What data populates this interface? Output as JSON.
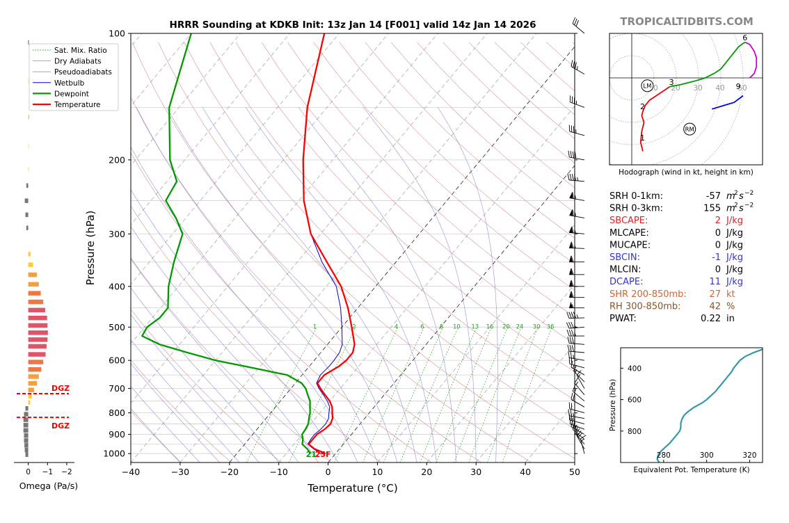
{
  "title": "HRRR Sounding at KDKB Init: 13z Jan 14 [F001] valid 14z Jan 14 2026",
  "brand": "TROPICALTIDBITS.COM",
  "chart_data": [
    {
      "type": "line",
      "name": "skewt",
      "xlabel": "Temperature (°C)",
      "ylabel": "Pressure (hPa)",
      "xlim": [
        -40,
        50
      ],
      "ylim": [
        1050,
        100
      ],
      "xticks": [
        "−40",
        "−30",
        "−20",
        "−10",
        "0",
        "10",
        "20",
        "30",
        "40",
        "50"
      ],
      "xtick_values": [
        -40,
        -30,
        -20,
        -10,
        0,
        10,
        20,
        30,
        40,
        50
      ],
      "yticks": [
        "1000",
        "900",
        "800",
        "700",
        "600",
        "500",
        "400",
        "300",
        "200",
        "100"
      ],
      "ytick_values": [
        1000,
        900,
        800,
        700,
        600,
        500,
        400,
        300,
        200,
        100
      ],
      "legend": [
        "Sat. Mix. Ratio",
        "Dry Adiabats",
        "Pseudoadiabats",
        "Wetbulb",
        "Dewpoint",
        "Temperature"
      ],
      "legend_position": "upper-left",
      "colors": {
        "temperature": "#ff0000",
        "dewpoint": "#009900",
        "wetbulb": "#0000cc",
        "dry": "#c87878",
        "moist": "#7878c8",
        "mix": "#339933"
      },
      "mixing_ratio_labels": [
        "1",
        "2",
        "4",
        "6",
        "8",
        "10",
        "13",
        "16",
        "20",
        "24",
        "30",
        "36"
      ],
      "surface_dewpoint_label": "21",
      "surface_temp_label": "25F",
      "temperature": [
        [
          1000,
          -2
        ],
        [
          975,
          -5
        ],
        [
          950,
          -7
        ],
        [
          925,
          -7
        ],
        [
          900,
          -7
        ],
        [
          875,
          -6.3
        ],
        [
          850,
          -6
        ],
        [
          825,
          -6.5
        ],
        [
          800,
          -7.5
        ],
        [
          775,
          -8.5
        ],
        [
          750,
          -10
        ],
        [
          725,
          -12
        ],
        [
          700,
          -14
        ],
        [
          680,
          -15.5
        ],
        [
          650,
          -15.5
        ],
        [
          620,
          -14
        ],
        [
          600,
          -13.5
        ],
        [
          575,
          -13.5
        ],
        [
          550,
          -14.5
        ],
        [
          500,
          -18
        ],
        [
          450,
          -22
        ],
        [
          400,
          -27
        ],
        [
          350,
          -34
        ],
        [
          300,
          -42
        ],
        [
          250,
          -49
        ],
        [
          200,
          -56
        ],
        [
          150,
          -64
        ],
        [
          100,
          -73
        ]
      ],
      "wetbulb": [
        [
          1000,
          -3
        ],
        [
          975,
          -5.2
        ],
        [
          950,
          -7.2
        ],
        [
          925,
          -7.4
        ],
        [
          900,
          -7.5
        ],
        [
          875,
          -7.1
        ],
        [
          850,
          -7
        ],
        [
          825,
          -7.3
        ],
        [
          800,
          -8.2
        ],
        [
          775,
          -9
        ],
        [
          750,
          -10.5
        ],
        [
          725,
          -12.3
        ],
        [
          700,
          -14.3
        ],
        [
          680,
          -15.7
        ],
        [
          650,
          -16.3
        ],
        [
          620,
          -16
        ],
        [
          600,
          -16
        ],
        [
          575,
          -16.2
        ],
        [
          550,
          -17
        ],
        [
          500,
          -20
        ],
        [
          450,
          -23.5
        ],
        [
          400,
          -28
        ],
        [
          350,
          -35
        ],
        [
          300,
          -42
        ],
        [
          250,
          -49
        ],
        [
          200,
          -56
        ],
        [
          150,
          -64
        ],
        [
          100,
          -73
        ]
      ],
      "dewpoint": [
        [
          1000,
          -5
        ],
        [
          975,
          -6.5
        ],
        [
          950,
          -8.3
        ],
        [
          925,
          -9
        ],
        [
          900,
          -10
        ],
        [
          875,
          -10.2
        ],
        [
          850,
          -10.5
        ],
        [
          825,
          -11.3
        ],
        [
          800,
          -12
        ],
        [
          775,
          -13
        ],
        [
          750,
          -14
        ],
        [
          725,
          -15.5
        ],
        [
          700,
          -17
        ],
        [
          680,
          -18.7
        ],
        [
          650,
          -23
        ],
        [
          620,
          -33
        ],
        [
          600,
          -40
        ],
        [
          575,
          -47
        ],
        [
          550,
          -54
        ],
        [
          525,
          -59
        ],
        [
          500,
          -59.5
        ],
        [
          475,
          -58.5
        ],
        [
          450,
          -58.5
        ],
        [
          400,
          -62
        ],
        [
          350,
          -65
        ],
        [
          300,
          -68
        ],
        [
          275,
          -72
        ],
        [
          250,
          -77
        ],
        [
          225,
          -78
        ],
        [
          200,
          -83
        ],
        [
          150,
          -92
        ],
        [
          100,
          -100
        ]
      ],
      "wind_barbs": [
        {
          "p": 1000,
          "dir": 345,
          "spd": 15
        },
        {
          "p": 975,
          "dir": 330,
          "spd": 20
        },
        {
          "p": 950,
          "dir": 320,
          "spd": 25
        },
        {
          "p": 925,
          "dir": 310,
          "spd": 25
        },
        {
          "p": 900,
          "dir": 300,
          "spd": 25
        },
        {
          "p": 875,
          "dir": 290,
          "spd": 25
        },
        {
          "p": 850,
          "dir": 285,
          "spd": 25
        },
        {
          "p": 825,
          "dir": 280,
          "spd": 25
        },
        {
          "p": 800,
          "dir": 285,
          "spd": 20
        },
        {
          "p": 775,
          "dir": 300,
          "spd": 20
        },
        {
          "p": 750,
          "dir": 310,
          "spd": 15
        },
        {
          "p": 725,
          "dir": 320,
          "spd": 15
        },
        {
          "p": 700,
          "dir": 330,
          "spd": 15
        },
        {
          "p": 675,
          "dir": 315,
          "spd": 15
        },
        {
          "p": 650,
          "dir": 300,
          "spd": 15
        },
        {
          "p": 625,
          "dir": 285,
          "spd": 20
        },
        {
          "p": 600,
          "dir": 280,
          "spd": 25
        },
        {
          "p": 575,
          "dir": 275,
          "spd": 30
        },
        {
          "p": 550,
          "dir": 275,
          "spd": 30
        },
        {
          "p": 525,
          "dir": 270,
          "spd": 35
        },
        {
          "p": 500,
          "dir": 265,
          "spd": 35
        },
        {
          "p": 475,
          "dir": 268,
          "spd": 45
        },
        {
          "p": 450,
          "dir": 270,
          "spd": 55
        },
        {
          "p": 425,
          "dir": 270,
          "spd": 60
        },
        {
          "p": 400,
          "dir": 270,
          "spd": 60
        },
        {
          "p": 375,
          "dir": 270,
          "spd": 60
        },
        {
          "p": 350,
          "dir": 270,
          "spd": 60
        },
        {
          "p": 325,
          "dir": 272,
          "spd": 65
        },
        {
          "p": 300,
          "dir": 275,
          "spd": 65
        },
        {
          "p": 275,
          "dir": 280,
          "spd": 65
        },
        {
          "p": 250,
          "dir": 280,
          "spd": 65
        },
        {
          "p": 225,
          "dir": 275,
          "spd": 45
        },
        {
          "p": 200,
          "dir": 280,
          "spd": 40
        },
        {
          "p": 175,
          "dir": 285,
          "spd": 35
        },
        {
          "p": 150,
          "dir": 290,
          "spd": 35
        },
        {
          "p": 125,
          "dir": 300,
          "spd": 35
        },
        {
          "p": 100,
          "dir": 310,
          "spd": 30
        }
      ]
    },
    {
      "type": "bar",
      "name": "omega",
      "xlabel": "Omega (Pa/s)",
      "xticks": [
        "0",
        "−1",
        "−2"
      ],
      "xtick_values": [
        0,
        -1,
        -2
      ],
      "xlim": [
        0.6,
        -2.4
      ],
      "dgz_label": "DGZ",
      "dgz_levels": [
        720,
        820
      ],
      "bars": [
        [
          105,
          0.01
        ],
        [
          130,
          -0.04
        ],
        [
          158,
          -0.05
        ],
        [
          185,
          -0.02
        ],
        [
          210,
          -0.01
        ],
        [
          230,
          0.1
        ],
        [
          250,
          0.18
        ],
        [
          270,
          0.15
        ],
        [
          290,
          0.1
        ],
        [
          335,
          -0.12
        ],
        [
          355,
          -0.25
        ],
        [
          375,
          -0.45
        ],
        [
          395,
          -0.55
        ],
        [
          415,
          -0.65
        ],
        [
          435,
          -0.78
        ],
        [
          455,
          -0.88
        ],
        [
          475,
          -0.98
        ],
        [
          495,
          -1.0
        ],
        [
          515,
          -1.02
        ],
        [
          535,
          -1.0
        ],
        [
          555,
          -0.95
        ],
        [
          580,
          -0.9
        ],
        [
          605,
          -0.78
        ],
        [
          630,
          -0.68
        ],
        [
          655,
          -0.55
        ],
        [
          680,
          -0.45
        ],
        [
          705,
          -0.3
        ],
        [
          730,
          -0.18
        ],
        [
          755,
          -0.1
        ],
        [
          780,
          0.15
        ],
        [
          805,
          0.22
        ],
        [
          830,
          0.25
        ],
        [
          855,
          0.25
        ],
        [
          880,
          0.25
        ],
        [
          905,
          0.22
        ],
        [
          930,
          0.22
        ],
        [
          955,
          0.2
        ],
        [
          980,
          0.18
        ],
        [
          1005,
          0.15
        ]
      ]
    },
    {
      "type": "line",
      "name": "hodograph",
      "xlabel": "Hodograph (wind in kt, height in km)",
      "ring_labels": [
        "10",
        "20",
        "30",
        "40",
        "50"
      ],
      "ring_values": [
        10,
        20,
        30,
        40,
        50
      ],
      "segments": [
        {
          "color": "#ee0000",
          "points": [
            [
              5,
              -33
            ],
            [
              4,
              -29
            ],
            [
              4.5,
              -24
            ],
            [
              5.5,
              -20
            ],
            [
              4.5,
              -17
            ],
            [
              5,
              -15
            ],
            [
              6,
              -12.5
            ],
            [
              8,
              -10
            ],
            [
              11,
              -8
            ],
            [
              14,
              -6
            ],
            [
              17,
              -4
            ]
          ]
        },
        {
          "color": "#009900",
          "points": [
            [
              17,
              -4
            ],
            [
              22,
              -3
            ],
            [
              28,
              -1.5
            ],
            [
              33,
              0
            ],
            [
              37,
              2
            ],
            [
              40,
              4
            ],
            [
              42,
              6.5
            ],
            [
              44,
              9
            ],
            [
              46,
              11.5
            ],
            [
              48,
              14
            ],
            [
              50,
              15.5
            ],
            [
              51,
              16
            ]
          ]
        },
        {
          "color": "#cc00cc",
          "points": [
            [
              51,
              16
            ],
            [
              53,
              15
            ],
            [
              55,
              12
            ],
            [
              56,
              9
            ],
            [
              56,
              5
            ],
            [
              55,
              2
            ],
            [
              53,
              0
            ]
          ]
        },
        {
          "color": "#0000ee",
          "points": [
            [
              50,
              -8
            ],
            [
              46,
              -11
            ],
            [
              41,
              -12.5
            ],
            [
              36,
              -14
            ]
          ]
        }
      ],
      "labels": [
        {
          "text": "1",
          "x": 5,
          "y": -29
        },
        {
          "text": "2",
          "x": 5,
          "y": -15
        },
        {
          "text": "3",
          "x": 18,
          "y": -4
        },
        {
          "text": "6",
          "x": 51,
          "y": 16
        },
        {
          "text": "9",
          "x": 48,
          "y": -6
        }
      ],
      "markers": [
        {
          "text": "LM",
          "x": 7,
          "y": -3.5
        },
        {
          "text": "RM",
          "x": 26,
          "y": -23
        }
      ]
    },
    {
      "type": "line",
      "name": "theta_e",
      "xlabel": "Equivalent Pot. Temperature (K)",
      "ylabel": "Pressure (hPa)",
      "xticks": [
        "280",
        "300",
        "320"
      ],
      "xtick_values": [
        280,
        300,
        320
      ],
      "yticks": [
        "400",
        "600",
        "800"
      ],
      "ytick_values": [
        400,
        600,
        800
      ],
      "xlim": [
        260,
        326
      ],
      "ylim": [
        1000,
        270
      ],
      "color": "#3399aa",
      "points": [
        [
          1000,
          278
        ],
        [
          980,
          277
        ],
        [
          950,
          277.5
        ],
        [
          925,
          279
        ],
        [
          900,
          281
        ],
        [
          875,
          283
        ],
        [
          850,
          284.5
        ],
        [
          825,
          286
        ],
        [
          800,
          287.5
        ],
        [
          775,
          288
        ],
        [
          750,
          288
        ],
        [
          725,
          288.5
        ],
        [
          700,
          289.5
        ],
        [
          680,
          291
        ],
        [
          650,
          294
        ],
        [
          620,
          298
        ],
        [
          600,
          300
        ],
        [
          575,
          302
        ],
        [
          550,
          304
        ],
        [
          525,
          305.5
        ],
        [
          500,
          307
        ],
        [
          475,
          308.5
        ],
        [
          450,
          310
        ],
        [
          425,
          311.5
        ],
        [
          400,
          312.5
        ],
        [
          375,
          314
        ],
        [
          350,
          315.5
        ],
        [
          325,
          318
        ],
        [
          300,
          322
        ],
        [
          280,
          326
        ]
      ]
    }
  ],
  "stats": [
    {
      "label": "SRH 0-1km:",
      "value": "-57",
      "unit": "m",
      "sup": "2",
      "unit2": "s",
      "sup2": "−2",
      "color": "#000000"
    },
    {
      "label": "SRH 0-3km:",
      "value": "155",
      "unit": "m",
      "sup": "2",
      "unit2": "s",
      "sup2": "−2",
      "color": "#000000"
    },
    {
      "label": "SBCAPE:",
      "value": "2",
      "unit": "J/kg",
      "color": "#dd2222"
    },
    {
      "label": "MLCAPE:",
      "value": "0",
      "unit": "J/kg",
      "color": "#000000"
    },
    {
      "label": "MUCAPE:",
      "value": "0",
      "unit": "J/kg",
      "color": "#000000"
    },
    {
      "label": "SBCIN:",
      "value": "-1",
      "unit": "J/kg",
      "color": "#3333cc"
    },
    {
      "label": "MLCIN:",
      "value": "0",
      "unit": "J/kg",
      "color": "#000000"
    },
    {
      "label": "DCAPE:",
      "value": "11",
      "unit": "J/kg",
      "color": "#3333cc"
    },
    {
      "label": "SHR 200-850mb:",
      "value": "27",
      "unit": "kt",
      "color": "#cc6633"
    },
    {
      "label": "RH 300-850mb:",
      "value": "42",
      "unit": "%",
      "color": "#885522"
    },
    {
      "label": "PWAT:",
      "value": "0.22",
      "unit": "in",
      "color": "#000000"
    }
  ]
}
